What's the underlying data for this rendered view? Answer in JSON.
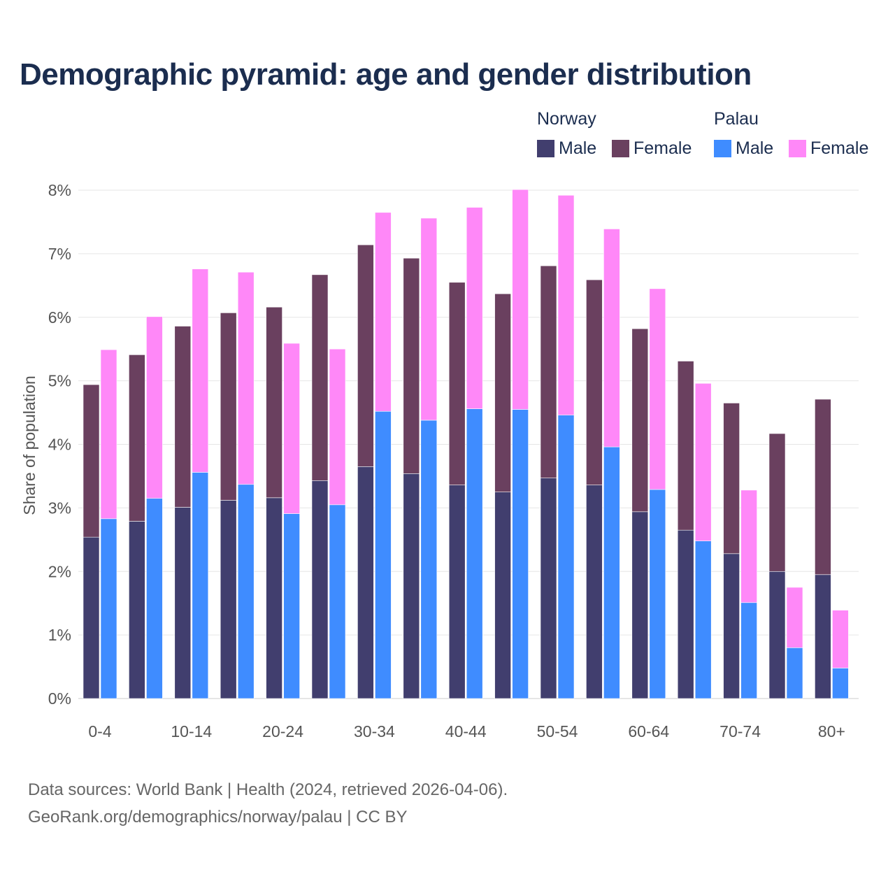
{
  "chart_data": {
    "type": "bar",
    "stacked": true,
    "title": "Demographic pyramid: age and gender distribution",
    "ylabel": "Share of population",
    "xlabel": "",
    "ylim": [
      0,
      8
    ],
    "yticks": [
      "0%",
      "1%",
      "2%",
      "3%",
      "4%",
      "5%",
      "6%",
      "7%",
      "8%"
    ],
    "categories": [
      "0-4",
      "5-9",
      "10-14",
      "15-19",
      "20-24",
      "25-29",
      "30-34",
      "35-39",
      "40-44",
      "45-49",
      "50-54",
      "55-59",
      "60-64",
      "65-69",
      "70-74",
      "75-79",
      "80+"
    ],
    "x_tick_labels": [
      "0-4",
      "10-14",
      "20-24",
      "30-34",
      "40-44",
      "50-54",
      "60-64",
      "70-74",
      "80+"
    ],
    "countries": [
      {
        "name": "Norway",
        "series": [
          {
            "name": "Male",
            "color": "#413e6e",
            "values": [
              2.54,
              2.79,
              3.01,
              3.12,
              3.16,
              3.43,
              3.65,
              3.54,
              3.36,
              3.25,
              3.47,
              3.36,
              2.94,
              2.65,
              2.28,
              2.0,
              1.95
            ]
          },
          {
            "name": "Female",
            "color": "#6a405f",
            "values": [
              2.4,
              2.62,
              2.85,
              2.95,
              3.0,
              3.24,
              3.49,
              3.39,
              3.19,
              3.12,
              3.34,
              3.23,
              2.88,
              2.66,
              2.37,
              2.17,
              2.76
            ]
          }
        ]
      },
      {
        "name": "Palau",
        "series": [
          {
            "name": "Male",
            "color": "#3f8cff",
            "values": [
              2.83,
              3.15,
              3.56,
              3.37,
              2.91,
              3.05,
              4.52,
              4.38,
              4.56,
              4.55,
              4.46,
              3.96,
              3.29,
              2.48,
              1.51,
              0.8,
              0.48
            ]
          },
          {
            "name": "Female",
            "color": "#ff88f8",
            "values": [
              2.66,
              2.86,
              3.2,
              3.34,
              2.68,
              2.45,
              3.13,
              3.18,
              3.17,
              3.46,
              3.46,
              3.43,
              3.16,
              2.48,
              1.77,
              0.95,
              0.91
            ]
          }
        ]
      }
    ],
    "legend_position": "top-right",
    "grid": true
  },
  "legend": {
    "groups": [
      {
        "title": "Norway",
        "items": [
          {
            "label": "Male",
            "color": "#413e6e"
          },
          {
            "label": "Female",
            "color": "#6a405f"
          }
        ]
      },
      {
        "title": "Palau",
        "items": [
          {
            "label": "Male",
            "color": "#3f8cff"
          },
          {
            "label": "Female",
            "color": "#ff88f8"
          }
        ]
      }
    ]
  },
  "source": {
    "line1": "Data sources: World Bank | Health (2024, retrieved 2026-04-06).",
    "line2": "GeoRank.org/demographics/norway/palau | CC BY"
  }
}
